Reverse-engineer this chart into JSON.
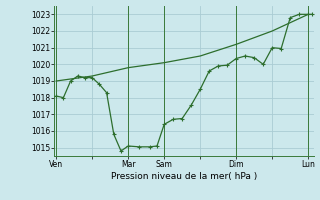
{
  "background_color": "#cce8ec",
  "grid_color": "#aaccd4",
  "line_color": "#2d6e2d",
  "ylim": [
    1014.5,
    1023.5
  ],
  "ylabel_ticks": [
    1015,
    1016,
    1017,
    1018,
    1019,
    1020,
    1021,
    1022,
    1023
  ],
  "xlabel": "Pression niveau de la mer( hPa )",
  "xtick_labels": [
    "Ven",
    "",
    "Mar",
    "Sam",
    "",
    "Dim",
    "",
    "Lun"
  ],
  "xtick_positions": [
    0,
    2,
    4,
    6,
    8,
    10,
    12,
    14
  ],
  "xlim": [
    -0.1,
    14.3
  ],
  "line1_x": [
    0,
    2,
    4,
    6,
    8,
    10,
    12,
    14
  ],
  "line1_y": [
    1019.0,
    1019.3,
    1019.8,
    1020.1,
    1020.5,
    1021.2,
    1022.0,
    1023.0
  ],
  "line2_x": [
    0,
    0.4,
    0.8,
    1.2,
    1.6,
    2.0,
    2.4,
    2.8,
    3.2,
    3.6,
    4.0,
    4.6,
    5.2,
    5.6,
    6.0,
    6.5,
    7.0,
    7.5,
    8.0,
    8.5,
    9.0,
    9.5,
    10.0,
    10.5,
    11.0,
    11.5,
    12.0,
    12.5,
    13.0,
    13.5,
    14.0,
    14.2
  ],
  "line2_y": [
    1018.1,
    1018.0,
    1019.0,
    1019.3,
    1019.2,
    1019.2,
    1018.8,
    1018.3,
    1015.8,
    1014.8,
    1015.1,
    1015.05,
    1015.05,
    1015.1,
    1016.4,
    1016.7,
    1016.75,
    1017.55,
    1018.5,
    1019.6,
    1019.9,
    1019.95,
    1020.35,
    1020.5,
    1020.4,
    1020.0,
    1021.0,
    1020.95,
    1022.8,
    1023.0,
    1023.0,
    1023.0
  ]
}
